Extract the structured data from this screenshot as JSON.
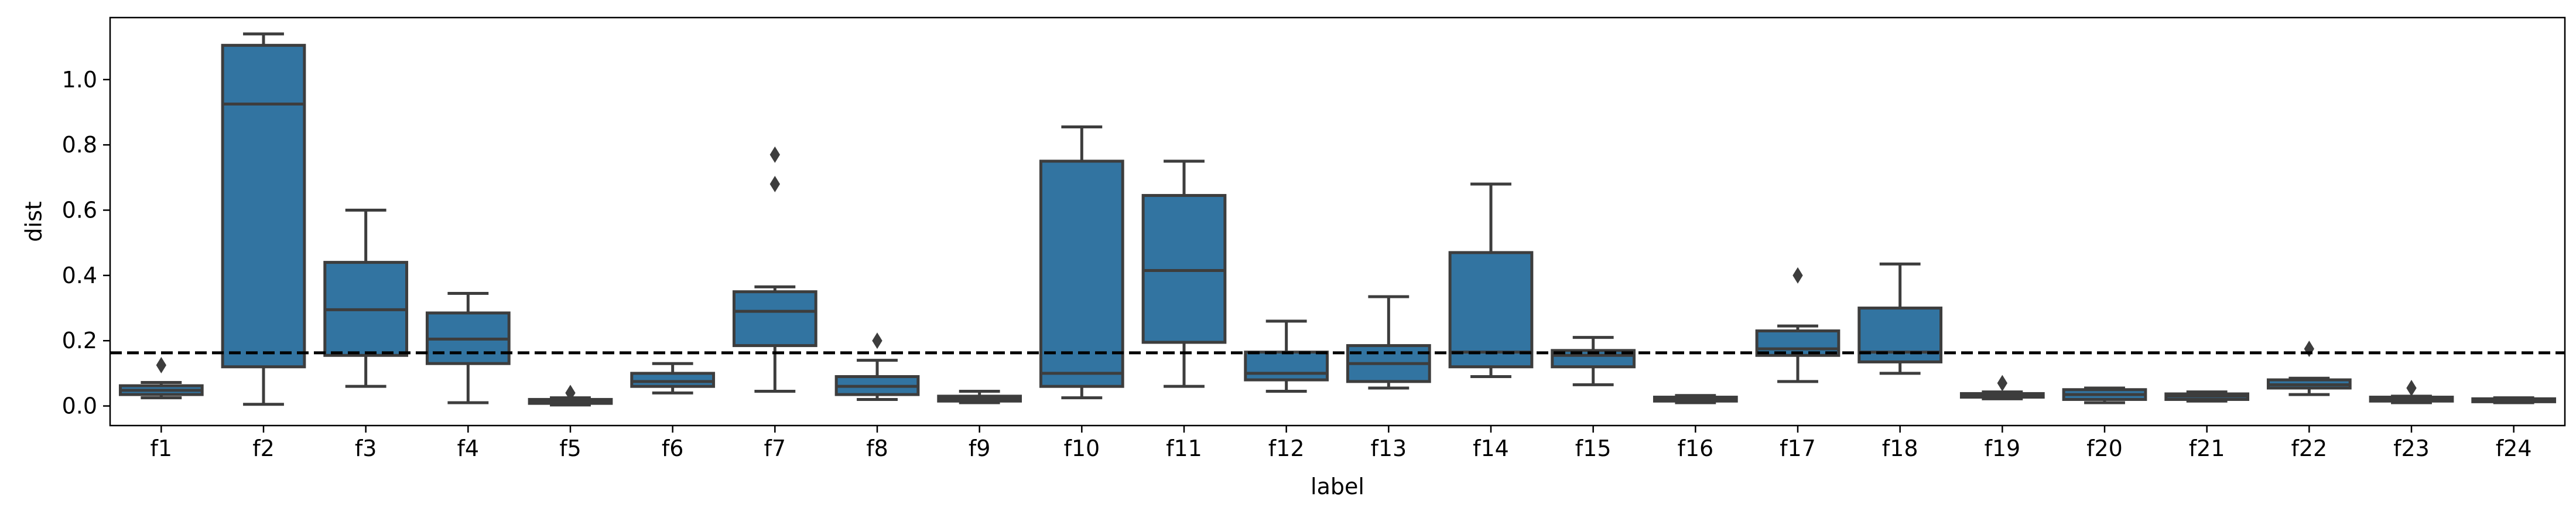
{
  "chart_data": {
    "type": "box",
    "xlabel": "label",
    "ylabel": "dist",
    "ylim": [
      -0.06,
      1.19
    ],
    "yticks": [
      0.0,
      0.2,
      0.4,
      0.6,
      0.8,
      1.0
    ],
    "ytick_labels": [
      "0.0",
      "0.2",
      "0.4",
      "0.6",
      "0.8",
      "1.0"
    ],
    "reference_line": {
      "y": 0.163,
      "style": "dashed",
      "color": "#000000"
    },
    "grid": false,
    "colors": {
      "box": "#3274a1",
      "line": "#3d3d3d"
    },
    "categories": [
      "f1",
      "f2",
      "f3",
      "f4",
      "f5",
      "f6",
      "f7",
      "f8",
      "f9",
      "f10",
      "f11",
      "f12",
      "f13",
      "f14",
      "f15",
      "f16",
      "f17",
      "f18",
      "f19",
      "f20",
      "f21",
      "f22",
      "f23",
      "f24"
    ],
    "boxes": [
      {
        "label": "f1",
        "whislo": 0.025,
        "q1": 0.035,
        "med": 0.048,
        "q3": 0.062,
        "whishi": 0.072,
        "fliers": [
          0.125
        ]
      },
      {
        "label": "f2",
        "whislo": 0.005,
        "q1": 0.12,
        "med": 0.925,
        "q3": 1.105,
        "whishi": 1.14,
        "fliers": []
      },
      {
        "label": "f3",
        "whislo": 0.06,
        "q1": 0.155,
        "med": 0.295,
        "q3": 0.44,
        "whishi": 0.6,
        "fliers": []
      },
      {
        "label": "f4",
        "whislo": 0.01,
        "q1": 0.13,
        "med": 0.205,
        "q3": 0.285,
        "whishi": 0.345,
        "fliers": []
      },
      {
        "label": "f5",
        "whislo": 0.003,
        "q1": 0.008,
        "med": 0.012,
        "q3": 0.02,
        "whishi": 0.025,
        "fliers": [
          0.04
        ]
      },
      {
        "label": "f6",
        "whislo": 0.04,
        "q1": 0.06,
        "med": 0.075,
        "q3": 0.1,
        "whishi": 0.13,
        "fliers": []
      },
      {
        "label": "f7",
        "whislo": 0.045,
        "q1": 0.185,
        "med": 0.29,
        "q3": 0.35,
        "whishi": 0.365,
        "fliers": [
          0.68,
          0.77
        ]
      },
      {
        "label": "f8",
        "whislo": 0.02,
        "q1": 0.035,
        "med": 0.06,
        "q3": 0.09,
        "whishi": 0.14,
        "fliers": [
          0.2
        ]
      },
      {
        "label": "f9",
        "whislo": 0.01,
        "q1": 0.015,
        "med": 0.022,
        "q3": 0.03,
        "whishi": 0.045,
        "fliers": []
      },
      {
        "label": "f10",
        "whislo": 0.025,
        "q1": 0.06,
        "med": 0.1,
        "q3": 0.75,
        "whishi": 0.855,
        "fliers": []
      },
      {
        "label": "f11",
        "whislo": 0.06,
        "q1": 0.195,
        "med": 0.415,
        "q3": 0.645,
        "whishi": 0.75,
        "fliers": []
      },
      {
        "label": "f12",
        "whislo": 0.045,
        "q1": 0.08,
        "med": 0.1,
        "q3": 0.165,
        "whishi": 0.26,
        "fliers": []
      },
      {
        "label": "f13",
        "whislo": 0.055,
        "q1": 0.075,
        "med": 0.13,
        "q3": 0.185,
        "whishi": 0.335,
        "fliers": []
      },
      {
        "label": "f14",
        "whislo": 0.09,
        "q1": 0.12,
        "med": 0.165,
        "q3": 0.47,
        "whishi": 0.68,
        "fliers": []
      },
      {
        "label": "f15",
        "whislo": 0.065,
        "q1": 0.12,
        "med": 0.155,
        "q3": 0.17,
        "whishi": 0.21,
        "fliers": []
      },
      {
        "label": "f16",
        "whislo": 0.01,
        "q1": 0.015,
        "med": 0.02,
        "q3": 0.027,
        "whishi": 0.032,
        "fliers": []
      },
      {
        "label": "f17",
        "whislo": 0.075,
        "q1": 0.155,
        "med": 0.175,
        "q3": 0.23,
        "whishi": 0.245,
        "fliers": [
          0.4
        ]
      },
      {
        "label": "f18",
        "whislo": 0.1,
        "q1": 0.135,
        "med": 0.165,
        "q3": 0.3,
        "whishi": 0.435,
        "fliers": []
      },
      {
        "label": "f19",
        "whislo": 0.022,
        "q1": 0.027,
        "med": 0.032,
        "q3": 0.038,
        "whishi": 0.043,
        "fliers": [
          0.07
        ]
      },
      {
        "label": "f20",
        "whislo": 0.01,
        "q1": 0.02,
        "med": 0.035,
        "q3": 0.05,
        "whishi": 0.055,
        "fliers": []
      },
      {
        "label": "f21",
        "whislo": 0.015,
        "q1": 0.02,
        "med": 0.03,
        "q3": 0.037,
        "whishi": 0.043,
        "fliers": []
      },
      {
        "label": "f22",
        "whislo": 0.035,
        "q1": 0.055,
        "med": 0.065,
        "q3": 0.08,
        "whishi": 0.085,
        "fliers": [
          0.175
        ]
      },
      {
        "label": "f23",
        "whislo": 0.01,
        "q1": 0.015,
        "med": 0.02,
        "q3": 0.027,
        "whishi": 0.03,
        "fliers": [
          0.055
        ]
      },
      {
        "label": "f24",
        "whislo": 0.01,
        "q1": 0.013,
        "med": 0.017,
        "q3": 0.022,
        "whishi": 0.025,
        "fliers": []
      }
    ]
  }
}
